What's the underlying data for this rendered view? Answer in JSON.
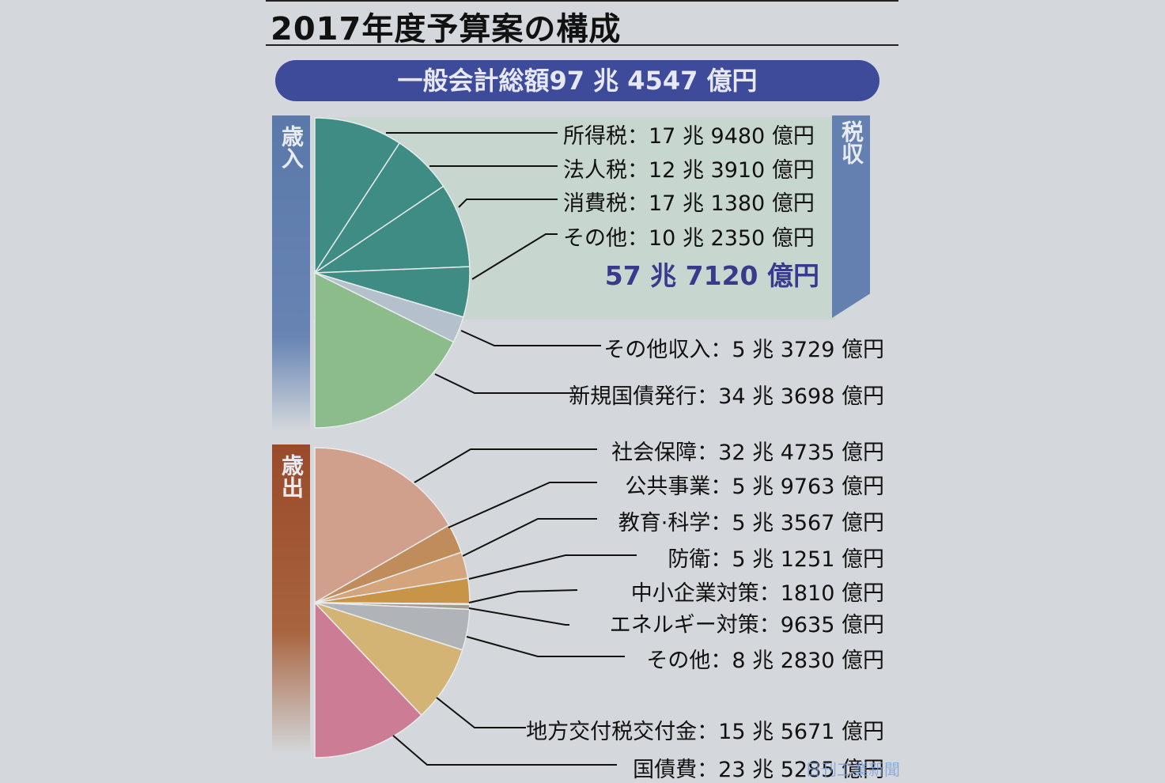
{
  "title": "2017年度予算案の構成",
  "total": "一般会計総額97 兆 4547 億円",
  "revenue": {
    "label": "歳入",
    "tax_label": "税収",
    "tax_total": "57 兆 7120 億円",
    "items": [
      {
        "name": "所得税",
        "value": "17 兆 9480 億円"
      },
      {
        "name": "法人税",
        "value": "12 兆 3910 億円"
      },
      {
        "name": "消費税",
        "value": "17 兆 1380 億円"
      },
      {
        "name": "その他",
        "value": "10 兆 2350 億円"
      },
      {
        "name": "その他収入",
        "value": "5 兆 3729 億円"
      },
      {
        "name": "新規国債発行",
        "value": "34 兆 3698 億円"
      }
    ]
  },
  "expenditure": {
    "label": "歳出",
    "items": [
      {
        "name": "社会保障",
        "value": "32 兆 4735 億円"
      },
      {
        "name": "公共事業",
        "value": "5 兆 9763 億円"
      },
      {
        "name": "教育·科学",
        "value": "5 兆 3567 億円"
      },
      {
        "name": "防衛",
        "value": "5 兆 1251 億円"
      },
      {
        "name": "中小企業対策",
        "value": "1810 億円"
      },
      {
        "name": "エネルギー対策",
        "value": "9635 億円"
      },
      {
        "name": "その他",
        "value": "8 兆 2830 億円"
      },
      {
        "name": "地方交付税交付金",
        "value": "15 兆 5671 億円"
      },
      {
        "name": "国債費",
        "value": "23 兆 5285 億円"
      }
    ]
  },
  "watermark": "日刊工業新聞",
  "colors": {
    "tax": "#3f8c84",
    "other_income": "#b4c0cc",
    "bonds": "#8cbc8c",
    "social": "#d0a08c",
    "public": "#c08c5c",
    "education": "#d4a47c",
    "defense": "#c89448",
    "sme": "#5a3a1a",
    "energy": "#a09c8c",
    "exp_other": "#b0b4b8",
    "local": "#d4b474",
    "debt": "#cc7c94"
  },
  "chart_data": [
    {
      "type": "pie",
      "title": "歳入",
      "unit": "億円",
      "categories": [
        "所得税",
        "法人税",
        "消費税",
        "その他(税)",
        "その他収入",
        "新規国債発行"
      ],
      "values": [
        179480,
        123910,
        171380,
        102350,
        53729,
        343698
      ],
      "group_total": {
        "税収": 577120
      },
      "total": 974547
    },
    {
      "type": "pie",
      "title": "歳出",
      "unit": "億円",
      "categories": [
        "社会保障",
        "公共事業",
        "教育·科学",
        "防衛",
        "中小企業対策",
        "エネルギー対策",
        "その他",
        "地方交付税交付金",
        "国債費"
      ],
      "values": [
        324735,
        59763,
        53567,
        51251,
        1810,
        9635,
        82830,
        155671,
        235285
      ],
      "total": 974547
    }
  ]
}
